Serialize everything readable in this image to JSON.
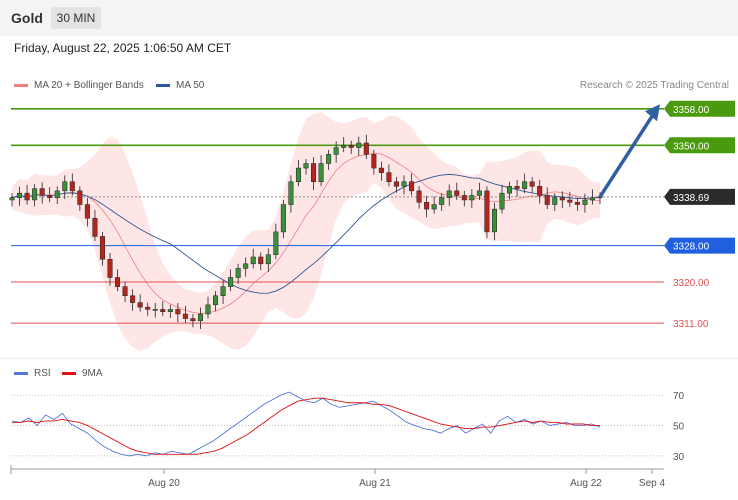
{
  "header": {
    "instrument": "Gold",
    "timeframe": "30 MIN",
    "datetime": "Friday, August 22, 2025 1:06:50 AM CET"
  },
  "legend": {
    "ma20": {
      "label": "MA 20 + Bollinger Bands",
      "color": "#f08080"
    },
    "ma50": {
      "label": "MA 50",
      "color": "#2f5597"
    }
  },
  "credit": "Research © 2025 Trading Central",
  "rsi_legend": {
    "rsi": {
      "label": "RSI",
      "color": "#5577dd"
    },
    "ma9": {
      "label": "9MA",
      "color": "#dd1111"
    }
  },
  "chart_data": [
    {
      "type": "candlestick",
      "title": "Gold",
      "timeframe": "30 MIN",
      "x_ticks": [
        "Aug 20",
        "Aug 21",
        "Aug 22",
        "Sep 4"
      ],
      "ylim": [
        3304,
        3363
      ],
      "levels": [
        {
          "value": 3358.0,
          "label": "3358.00",
          "kind": "resistance",
          "color": "#4a9a0e"
        },
        {
          "value": 3350.0,
          "label": "3350.00",
          "kind": "resistance",
          "color": "#4a9a0e"
        },
        {
          "value": 3338.69,
          "label": "3338.69",
          "kind": "last-price",
          "color": "#2b2b2b"
        },
        {
          "value": 3328.0,
          "label": "3328.00",
          "kind": "pivot",
          "color": "#1f5fe0"
        },
        {
          "value": 3320.0,
          "label": "3320.00",
          "kind": "support",
          "color": "#e05050"
        },
        {
          "value": 3311.0,
          "label": "3311.00",
          "kind": "support",
          "color": "#e05050"
        }
      ],
      "close_path": [
        3338.5,
        3339.5,
        3338,
        3340.5,
        3339,
        3338.5,
        3340,
        3342,
        3340,
        3337,
        3334,
        3330,
        3325,
        3321,
        3319,
        3317,
        3315.5,
        3314.5,
        3314,
        3314,
        3313.5,
        3314,
        3313,
        3312,
        3311.5,
        3313,
        3315,
        3317,
        3319,
        3321,
        3323,
        3324,
        3325.5,
        3324,
        3326,
        3331,
        3337,
        3342,
        3345,
        3346,
        3342,
        3346,
        3348,
        3349.5,
        3350,
        3349.5,
        3350.5,
        3348,
        3345,
        3344,
        3342,
        3341,
        3342,
        3340,
        3337.5,
        3336,
        3337,
        3338.5,
        3340,
        3339,
        3338,
        3339,
        3340,
        3331,
        3336,
        3339.5,
        3341,
        3340.5,
        3342,
        3341,
        3339,
        3337,
        3338.5,
        3338,
        3337.5,
        3337,
        3338,
        3338.5,
        3338.69
      ],
      "trend_arrow": {
        "from": 3338.7,
        "to": 3359
      }
    },
    {
      "type": "line",
      "title": "RSI",
      "ylim": [
        22,
        80
      ],
      "y_ticks": [
        "70",
        "50",
        "30"
      ],
      "series": [
        {
          "name": "RSI",
          "values": [
            53,
            52,
            55,
            50,
            57,
            54,
            58,
            51,
            48,
            45,
            40,
            36,
            33,
            31,
            30,
            31,
            30,
            32,
            31,
            33,
            32,
            31,
            34,
            37,
            40,
            44,
            48,
            52,
            56,
            60,
            64,
            67,
            70,
            72,
            69,
            66,
            65,
            68,
            64,
            62,
            63,
            64,
            65,
            66,
            63,
            60,
            56,
            52,
            50,
            48,
            47,
            45,
            48,
            50,
            45,
            48,
            51,
            45,
            53,
            56,
            52,
            54,
            51,
            53,
            50,
            51,
            52,
            50,
            50,
            51,
            49
          ]
        },
        {
          "name": "9MA",
          "values": [
            52,
            52,
            53,
            52,
            53,
            53,
            54,
            53,
            52,
            50,
            47,
            44,
            41,
            38,
            35,
            33,
            32,
            31,
            31,
            31,
            31,
            31,
            31,
            32,
            33,
            35,
            38,
            41,
            44,
            48,
            52,
            56,
            60,
            63,
            66,
            67,
            68,
            68,
            67,
            66,
            65,
            65,
            65,
            64,
            64,
            63,
            61,
            59,
            57,
            55,
            53,
            51,
            50,
            49,
            48,
            48,
            49,
            49,
            50,
            51,
            52,
            53,
            52,
            53,
            52,
            52,
            51,
            51,
            51,
            50,
            50
          ]
        }
      ]
    }
  ]
}
